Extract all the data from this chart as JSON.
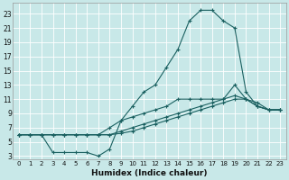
{
  "xlabel": "Humidex (Indice chaleur)",
  "bg_color": "#c8e8e8",
  "grid_color": "#b0d4d4",
  "line_color": "#1a6060",
  "xlim": [
    -0.5,
    23.5
  ],
  "ylim": [
    2.5,
    24.5
  ],
  "xticks": [
    0,
    1,
    2,
    3,
    4,
    5,
    6,
    7,
    8,
    9,
    10,
    11,
    12,
    13,
    14,
    15,
    16,
    17,
    18,
    19,
    20,
    21,
    22,
    23
  ],
  "yticks": [
    3,
    5,
    7,
    9,
    11,
    13,
    15,
    17,
    19,
    21,
    23
  ],
  "line1_x": [
    0,
    1,
    2,
    3,
    4,
    5,
    6,
    7,
    8,
    9,
    10,
    11,
    12,
    13,
    14,
    15,
    16,
    17,
    18,
    19,
    20,
    21,
    22,
    23
  ],
  "line1_y": [
    6,
    6,
    6,
    6,
    6,
    6,
    6,
    6,
    7,
    8,
    10,
    12,
    13,
    15.5,
    18,
    22,
    23.5,
    23.5,
    22,
    21,
    12,
    10,
    9.5,
    9.5
  ],
  "line2_x": [
    0,
    1,
    2,
    3,
    4,
    5,
    6,
    7,
    8,
    9,
    10,
    11,
    12,
    13,
    14,
    15,
    16,
    17,
    18,
    19,
    20,
    21,
    22,
    23
  ],
  "line2_y": [
    6,
    6,
    6,
    3.5,
    3.5,
    3.5,
    3.5,
    3,
    4,
    8,
    8.5,
    9,
    9.5,
    10,
    11,
    11,
    11,
    11,
    11,
    13,
    11,
    10,
    9.5,
    9.5
  ],
  "line3_x": [
    0,
    1,
    2,
    3,
    4,
    5,
    6,
    7,
    8,
    9,
    10,
    11,
    12,
    13,
    14,
    15,
    16,
    17,
    18,
    19,
    20,
    21,
    22,
    23
  ],
  "line3_y": [
    6,
    6,
    6,
    6,
    6,
    6,
    6,
    6,
    6,
    6.5,
    7,
    7.5,
    8,
    8.5,
    9,
    9.5,
    10,
    10.5,
    11,
    11.5,
    11,
    10.5,
    9.5,
    9.5
  ],
  "line4_x": [
    0,
    1,
    2,
    3,
    4,
    5,
    6,
    7,
    8,
    9,
    10,
    11,
    12,
    13,
    14,
    15,
    16,
    17,
    18,
    19,
    20,
    21,
    22,
    23
  ],
  "line4_y": [
    6,
    6,
    6,
    6,
    6,
    6,
    6,
    6,
    6,
    6.2,
    6.5,
    7,
    7.5,
    8,
    8.5,
    9,
    9.5,
    10,
    10.5,
    11,
    11,
    10,
    9.5,
    9.5
  ]
}
